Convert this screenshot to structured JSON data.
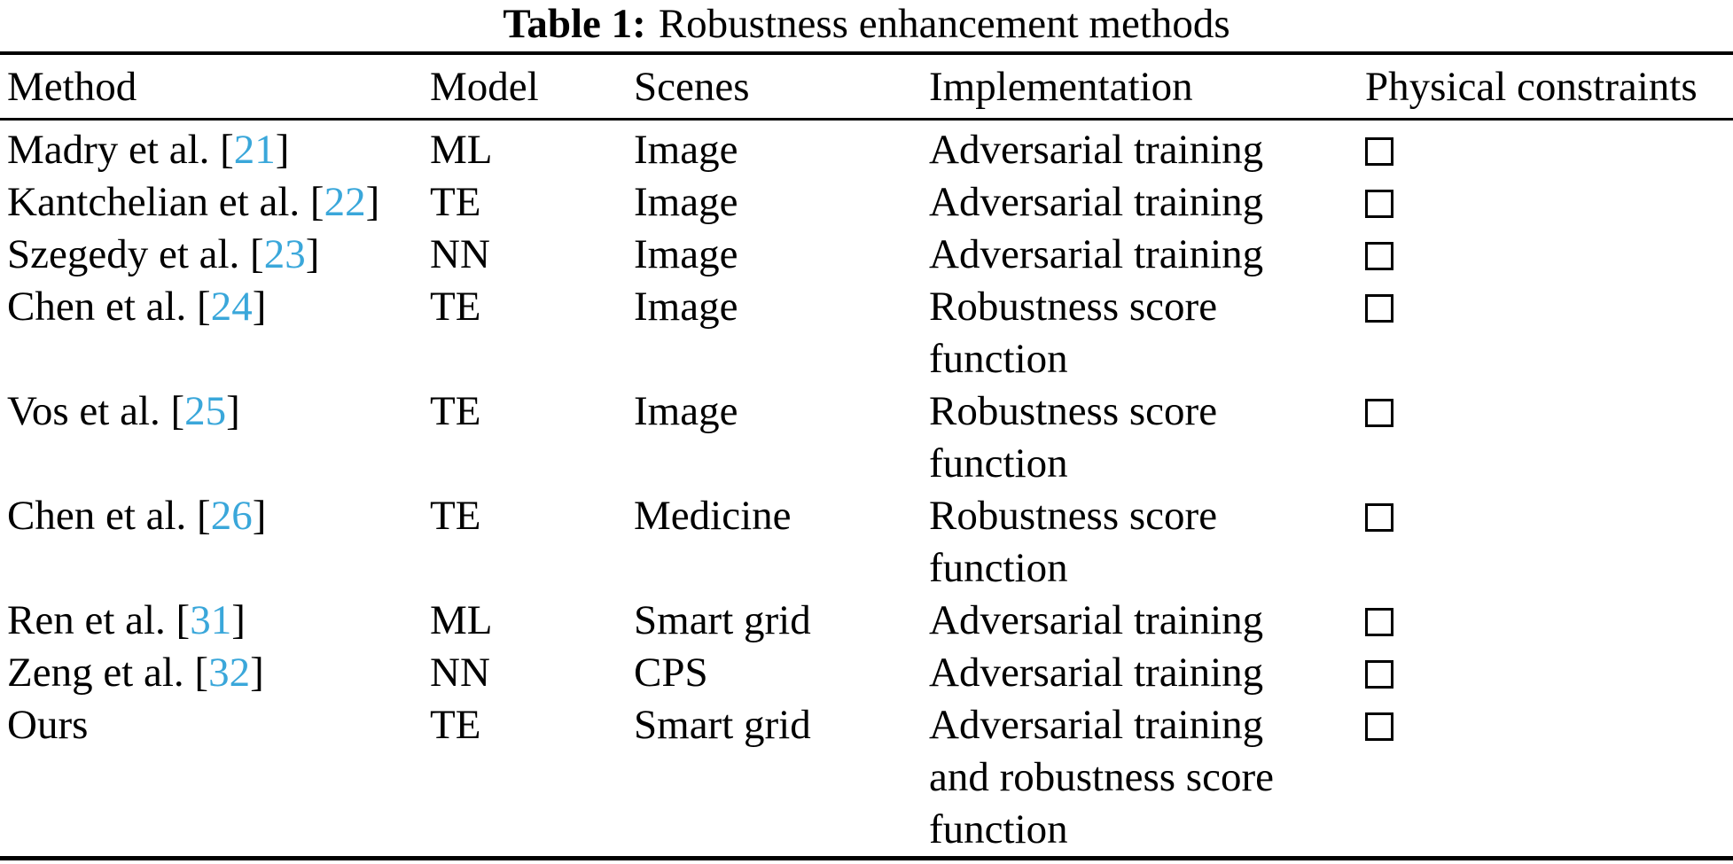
{
  "accent_color": "#3aa7da",
  "caption": {
    "label": "Table 1:",
    "title": "Robustness enhancement methods"
  },
  "table": {
    "headers": [
      "Method",
      "Model",
      "Scenes",
      "Implementation",
      "Physical constraints"
    ],
    "rows": [
      {
        "method_prefix": "Madry et al. [",
        "citation": "21",
        "method_suffix": "]",
        "model": "ML",
        "scenes": "Image",
        "implementation": "Adversarial training",
        "physical_constraints_checked": false
      },
      {
        "method_prefix": "Kantchelian et al. [",
        "citation": "22",
        "method_suffix": "]",
        "model": "TE",
        "scenes": "Image",
        "implementation": "Adversarial training",
        "physical_constraints_checked": false
      },
      {
        "method_prefix": "Szegedy et al. [",
        "citation": "23",
        "method_suffix": "]",
        "model": "NN",
        "scenes": "Image",
        "implementation": "Adversarial training",
        "physical_constraints_checked": false
      },
      {
        "method_prefix": "Chen et al. [",
        "citation": "24",
        "method_suffix": "]",
        "model": "TE",
        "scenes": "Image",
        "implementation": "Robustness score\nfunction",
        "physical_constraints_checked": false
      },
      {
        "method_prefix": "Vos et al. [",
        "citation": "25",
        "method_suffix": "]",
        "model": "TE",
        "scenes": "Image",
        "implementation": "Robustness score\nfunction",
        "physical_constraints_checked": false
      },
      {
        "method_prefix": "Chen et al. [",
        "citation": "26",
        "method_suffix": "]",
        "model": "TE",
        "scenes": "Medicine",
        "implementation": "Robustness score\nfunction",
        "physical_constraints_checked": false
      },
      {
        "method_prefix": "Ren et al. [",
        "citation": "31",
        "method_suffix": "]",
        "model": "ML",
        "scenes": "Smart grid",
        "implementation": "Adversarial training",
        "physical_constraints_checked": false
      },
      {
        "method_prefix": "Zeng et al. [",
        "citation": "32",
        "method_suffix": "]",
        "model": "NN",
        "scenes": "CPS",
        "implementation": "Adversarial training",
        "physical_constraints_checked": false
      },
      {
        "method_prefix": "Ours",
        "citation": "",
        "method_suffix": "",
        "model": "TE",
        "scenes": "Smart grid",
        "implementation": "Adversarial training\nand robustness score\nfunction",
        "physical_constraints_checked": false
      }
    ]
  }
}
